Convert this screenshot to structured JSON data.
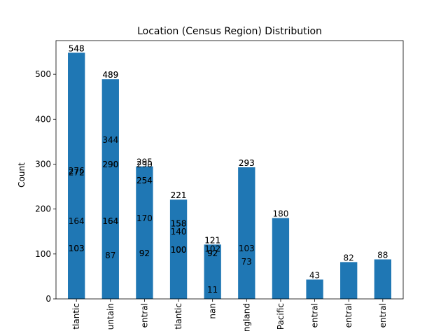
{
  "chart_data": {
    "type": "bar",
    "title": "Location (Census Region) Distribution",
    "xlabel": "",
    "ylabel": "Count",
    "ylim": [
      0,
      575
    ],
    "yticks": [
      0,
      100,
      200,
      300,
      400,
      500
    ],
    "grid": false,
    "bar_color": "#1f77b4",
    "categories": [
      "South Atlantic",
      "Mountain",
      "West North Central",
      "Middle Atlantic",
      "nan",
      "New England",
      "Pacific",
      "East South Central",
      "West South Central",
      "East North Central"
    ],
    "category_display": [
      "tlantic",
      "untain",
      "entral",
      "tlantic",
      "nan",
      "ngland",
      "Pacific",
      "entral",
      "entral",
      "entral"
    ],
    "values": [
      548,
      489,
      295,
      221,
      121,
      293,
      180,
      43,
      82,
      88
    ],
    "overlaid_labels": [
      [
        548,
        548,
        276,
        272,
        164,
        103,
        103
      ],
      [
        489,
        489,
        344,
        290,
        290,
        164,
        164,
        87
      ],
      [
        295,
        290,
        254,
        254,
        170,
        92,
        92
      ],
      [
        221,
        221,
        158,
        158,
        140,
        100,
        100
      ],
      [
        121,
        121,
        102,
        92,
        92,
        11
      ],
      [
        293,
        293,
        103,
        73
      ],
      [
        180
      ],
      [
        43
      ],
      [
        82
      ],
      [
        88
      ]
    ]
  }
}
